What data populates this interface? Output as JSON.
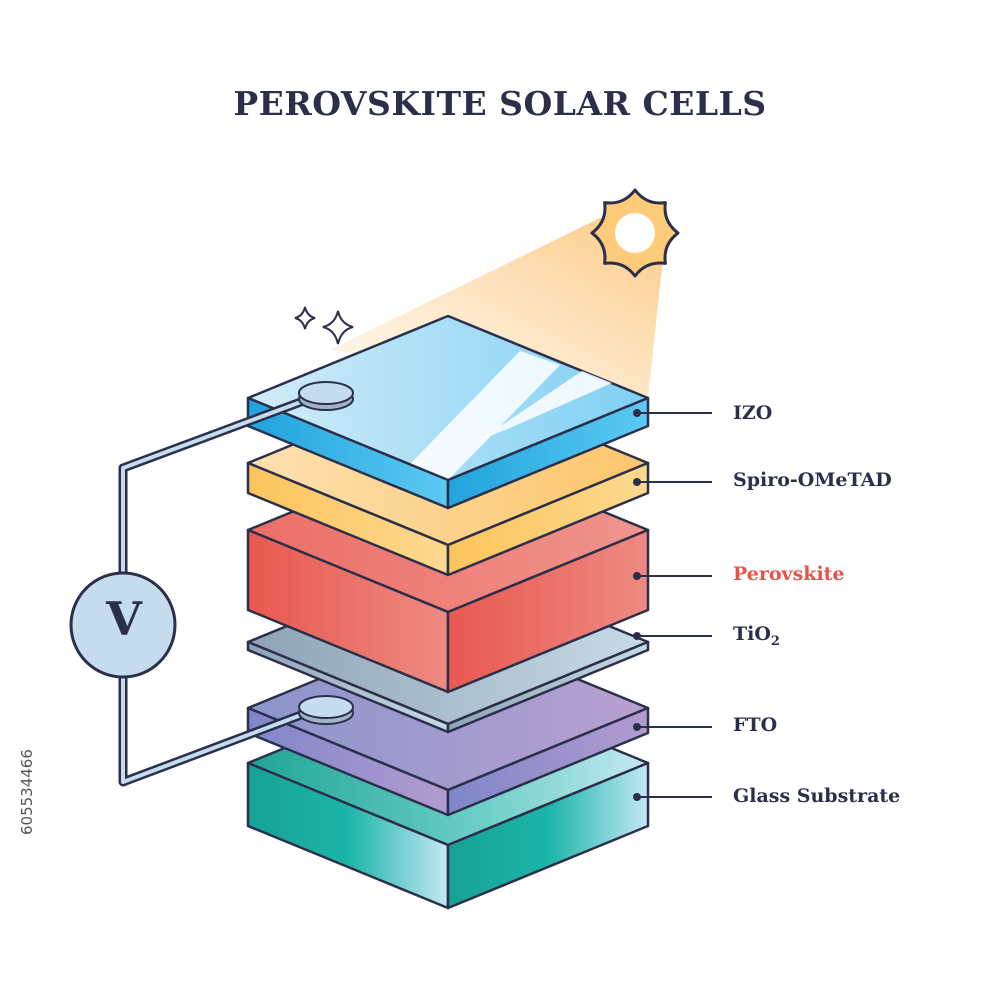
{
  "title": "PEROVSKITE SOLAR CELLS",
  "voltmeter_label": "V",
  "side_id": "605534466",
  "outline_color": "#2b2f4a",
  "layers": [
    {
      "label": "IZO",
      "color": "#29a7df",
      "label_color": "#2b2f4a"
    },
    {
      "label": "Spiro-OMeTAD",
      "color": "#fcc45c",
      "label_color": "#2b2f4a"
    },
    {
      "label": "Perovskite",
      "color": "#ea5a52",
      "label_color": "#e5534b"
    },
    {
      "label": "TiO",
      "sub": "2",
      "color": "#9fb5c8",
      "label_color": "#2b2f4a"
    },
    {
      "label": "FTO",
      "color": "#8f8fcf",
      "label_color": "#2b2f4a"
    },
    {
      "label": "Glass Substrate",
      "color": "#1aa898",
      "label_color": "#2b2f4a"
    }
  ],
  "icons": [
    "sun-icon",
    "sparkle-icon",
    "voltmeter-icon",
    "electrode-contact-icon"
  ]
}
